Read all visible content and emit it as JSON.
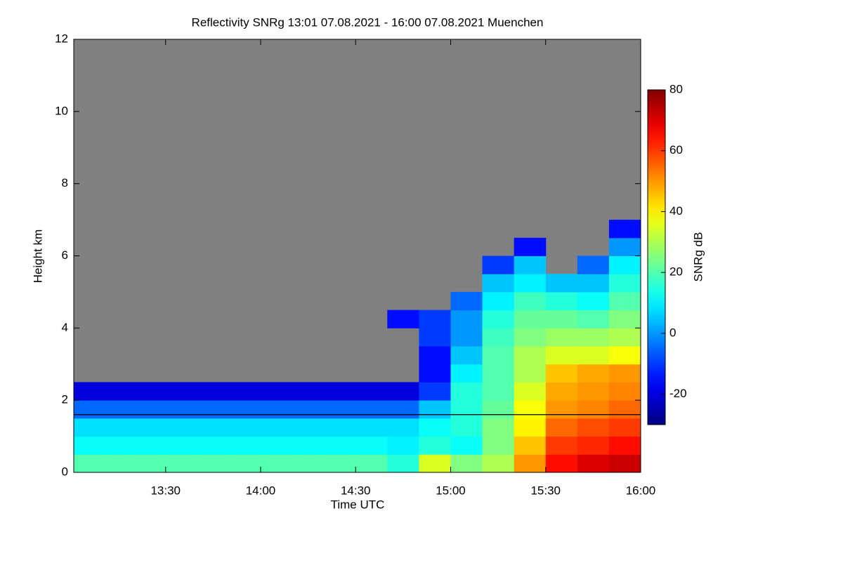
{
  "chart_data": {
    "type": "heatmap",
    "title": "Reflectivity SNRg   13:01 07.08.2021 - 16:00 07.08.2021 Muenchen",
    "x_label": "Time UTC",
    "y_label": "Height km",
    "colorbar_label": "SNRg dB",
    "xlim": [
      781,
      960
    ],
    "xticks": [
      {
        "value": 810,
        "label": "13:30"
      },
      {
        "value": 840,
        "label": "14:00"
      },
      {
        "value": 870,
        "label": "14:30"
      },
      {
        "value": 900,
        "label": "15:00"
      },
      {
        "value": 930,
        "label": "15:30"
      },
      {
        "value": 960,
        "label": "16:00"
      }
    ],
    "ylim": [
      0,
      12
    ],
    "yticks": [
      0,
      2,
      4,
      6,
      8,
      10,
      12
    ],
    "clim": [
      -30,
      80
    ],
    "cticks": [
      -20,
      0,
      20,
      40,
      60,
      80
    ],
    "colormap": "jet",
    "background": "#808080",
    "reference_line": 1.6,
    "xbins": [
      781,
      790,
      800,
      810,
      820,
      830,
      840,
      850,
      860,
      870,
      880,
      890,
      900,
      910,
      920,
      930,
      940,
      950,
      960
    ],
    "ybins": [
      0,
      0.5,
      1,
      1.5,
      2,
      2.5,
      3,
      3.5,
      4,
      4.5,
      5,
      5.5,
      6,
      6.5,
      7
    ],
    "z": [
      [
        20,
        20,
        20,
        20,
        20,
        20,
        20,
        20,
        20,
        20,
        15,
        35,
        25,
        30,
        50,
        65,
        70,
        72
      ],
      [
        12,
        12,
        12,
        12,
        12,
        12,
        12,
        12,
        12,
        12,
        10,
        15,
        12,
        25,
        45,
        60,
        62,
        65
      ],
      [
        8,
        8,
        8,
        8,
        8,
        8,
        8,
        8,
        8,
        8,
        8,
        12,
        15,
        25,
        40,
        55,
        58,
        60
      ],
      [
        -5,
        -5,
        -5,
        -5,
        -5,
        -5,
        -5,
        -5,
        -5,
        -5,
        -5,
        5,
        15,
        22,
        38,
        50,
        52,
        55
      ],
      [
        -20,
        -20,
        -20,
        -20,
        -20,
        -20,
        -20,
        -20,
        -20,
        -20,
        -20,
        -10,
        15,
        20,
        35,
        48,
        50,
        52
      ],
      [
        null,
        null,
        null,
        null,
        null,
        null,
        null,
        null,
        null,
        null,
        null,
        -15,
        10,
        20,
        30,
        45,
        48,
        50
      ],
      [
        null,
        null,
        null,
        null,
        null,
        null,
        null,
        null,
        null,
        null,
        null,
        -15,
        5,
        20,
        30,
        35,
        35,
        38
      ],
      [
        null,
        null,
        null,
        null,
        null,
        null,
        null,
        null,
        null,
        null,
        null,
        -10,
        0,
        18,
        25,
        28,
        28,
        30
      ],
      [
        null,
        null,
        null,
        null,
        null,
        null,
        null,
        null,
        null,
        null,
        -15,
        -10,
        0,
        15,
        22,
        22,
        20,
        25
      ],
      [
        null,
        null,
        null,
        null,
        null,
        null,
        null,
        null,
        null,
        null,
        null,
        null,
        -5,
        10,
        18,
        15,
        12,
        20
      ],
      [
        null,
        null,
        null,
        null,
        null,
        null,
        null,
        null,
        null,
        null,
        null,
        null,
        null,
        5,
        10,
        5,
        5,
        15
      ],
      [
        null,
        null,
        null,
        null,
        null,
        null,
        null,
        null,
        null,
        null,
        null,
        null,
        null,
        -10,
        5,
        null,
        -5,
        10
      ],
      [
        null,
        null,
        null,
        null,
        null,
        null,
        null,
        null,
        null,
        null,
        null,
        null,
        null,
        null,
        -15,
        null,
        null,
        0
      ],
      [
        null,
        null,
        null,
        null,
        null,
        null,
        null,
        null,
        null,
        null,
        null,
        null,
        null,
        null,
        null,
        null,
        null,
        -15
      ]
    ]
  }
}
